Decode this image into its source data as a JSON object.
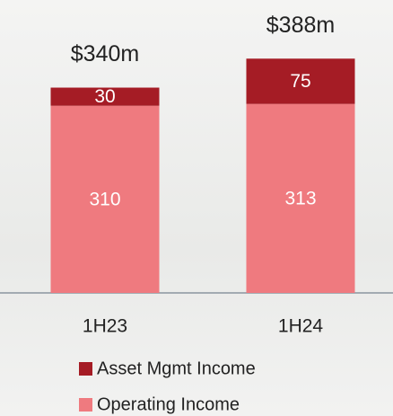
{
  "chart_data": {
    "type": "stacked_bar",
    "categories": [
      "1H23",
      "1H24"
    ],
    "series": [
      {
        "name": "Asset Mgmt Income",
        "color": "#a51c25",
        "values": [
          30,
          75
        ]
      },
      {
        "name": "Operating Income",
        "color": "#ef7a7f",
        "values": [
          310,
          313
        ]
      }
    ],
    "totals": {
      "values": [
        340,
        388
      ],
      "value_labels": [
        "$340m",
        "$388m"
      ]
    }
  }
}
